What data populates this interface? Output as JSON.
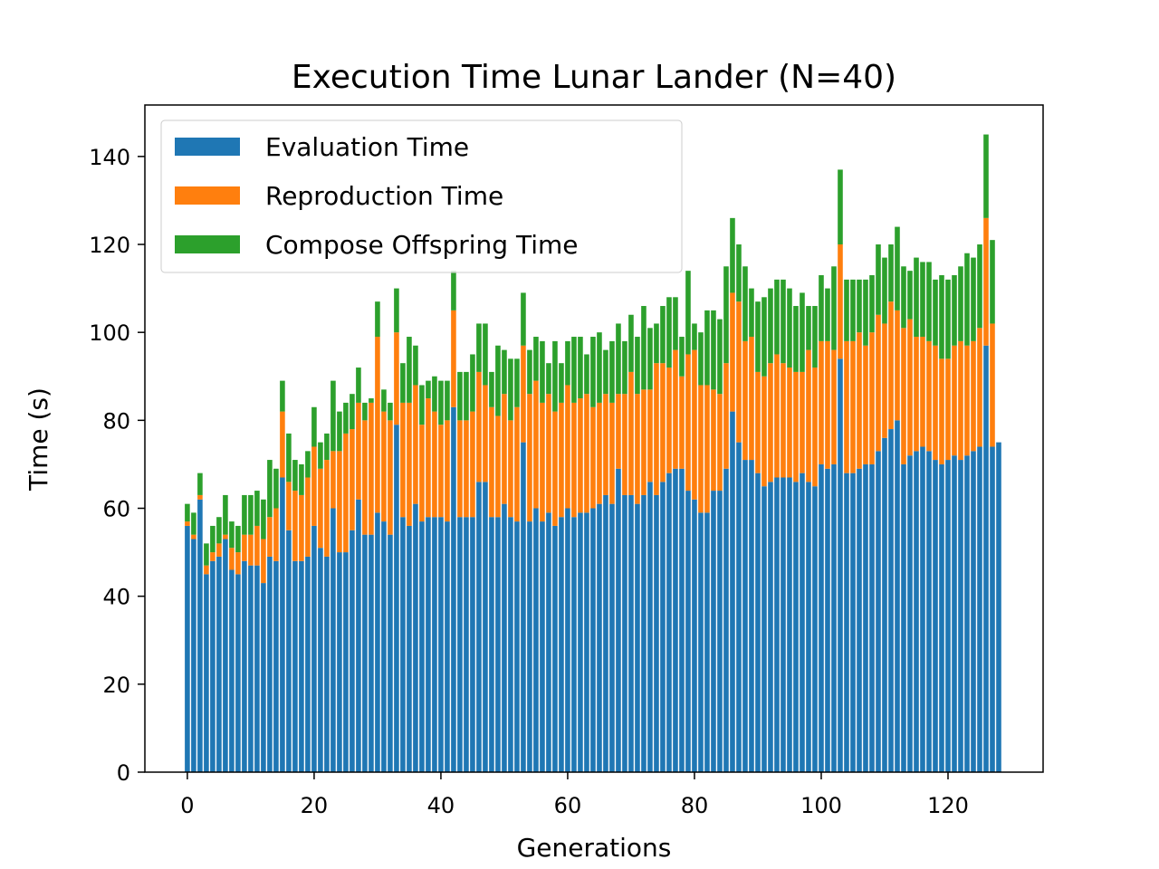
{
  "chart_data": {
    "type": "stacked_bar",
    "title": "Execution Time Lunar Lander (N=40)",
    "x_label": "Generations",
    "y_label": "Time (s)",
    "x": [
      0,
      1,
      2,
      3,
      4,
      5,
      6,
      7,
      8,
      9,
      10,
      11,
      12,
      13,
      14,
      15,
      16,
      17,
      18,
      19,
      20,
      21,
      22,
      23,
      24,
      25,
      26,
      27,
      28,
      29,
      30,
      31,
      32,
      33,
      34,
      35,
      36,
      37,
      38,
      39,
      40,
      41,
      42,
      43,
      44,
      45,
      46,
      47,
      48,
      49,
      50,
      51,
      52,
      53,
      54,
      55,
      56,
      57,
      58,
      59,
      60,
      61,
      62,
      63,
      64,
      65,
      66,
      67,
      68,
      69,
      70,
      71,
      72,
      73,
      74,
      75,
      76,
      77,
      78,
      79,
      80,
      81,
      82,
      83,
      84,
      85,
      86,
      87,
      88,
      89,
      90,
      91,
      92,
      93,
      94,
      95,
      96,
      97,
      98,
      99,
      100,
      101,
      102,
      103,
      104,
      105,
      106,
      107,
      108,
      109,
      110,
      111,
      112,
      113,
      114,
      115,
      116,
      117,
      118,
      119,
      120,
      121,
      122,
      123,
      124,
      125,
      126,
      127,
      128
    ],
    "series": [
      {
        "name": "Evaluation Time",
        "color": "#1f77b4",
        "values": [
          56,
          53,
          62,
          45,
          48,
          49,
          53,
          46,
          45,
          48,
          47,
          47,
          43,
          49,
          48,
          67,
          55,
          48,
          48,
          49,
          56,
          51,
          49,
          60,
          50,
          50,
          55,
          62,
          54,
          54,
          59,
          57,
          54,
          79,
          58,
          56,
          61,
          57,
          58,
          58,
          58,
          57,
          83,
          58,
          58,
          58,
          66,
          66,
          58,
          58,
          61,
          58,
          57,
          75,
          57,
          60,
          57,
          59,
          56,
          58,
          60,
          58,
          59,
          59,
          60,
          61,
          63,
          61,
          69,
          63,
          63,
          61,
          63,
          66,
          63,
          66,
          68,
          69,
          69,
          64,
          62,
          59,
          59,
          64,
          64,
          69,
          82,
          75,
          71,
          71,
          68,
          65,
          66,
          67,
          67,
          67,
          66,
          68,
          66,
          65,
          70,
          69,
          70,
          94,
          68,
          68,
          69,
          70,
          70,
          73,
          76,
          78,
          80,
          70,
          72,
          73,
          74,
          73,
          71,
          70,
          71,
          72,
          71,
          72,
          73,
          74,
          97,
          74,
          75
        ]
      },
      {
        "name": "Reproduction Time",
        "color": "#ff7f0e",
        "values": [
          1,
          1,
          1,
          2,
          2,
          3,
          1,
          5,
          5,
          6,
          7,
          9,
          10,
          9,
          12,
          15,
          11,
          16,
          15,
          18,
          18,
          18,
          22,
          13,
          23,
          27,
          23,
          22,
          26,
          30,
          40,
          25,
          26,
          21,
          26,
          28,
          27,
          22,
          27,
          24,
          21,
          23,
          22,
          22,
          22,
          24,
          25,
          22,
          25,
          23,
          25,
          22,
          26,
          22,
          29,
          29,
          27,
          27,
          26,
          26,
          28,
          26,
          26,
          27,
          23,
          23,
          23,
          23,
          17,
          23,
          28,
          25,
          24,
          21,
          30,
          27,
          24,
          27,
          21,
          31,
          34,
          29,
          29,
          23,
          22,
          24,
          27,
          32,
          27,
          28,
          23,
          25,
          27,
          28,
          26,
          25,
          25,
          23,
          30,
          27,
          28,
          29,
          26,
          26,
          30,
          30,
          31,
          27,
          30,
          31,
          26,
          29,
          25,
          31,
          31,
          26,
          25,
          25,
          26,
          24,
          23,
          25,
          27,
          25,
          25,
          27,
          29,
          28,
          0
        ]
      },
      {
        "name": "Compose Offspring Time",
        "color": "#2ca02c",
        "values": [
          4,
          5,
          5,
          5,
          6,
          6,
          9,
          6,
          6,
          9,
          9,
          8,
          9,
          13,
          9,
          7,
          11,
          7,
          7,
          6,
          9,
          6,
          6,
          16,
          9,
          7,
          8,
          8,
          4,
          1,
          8,
          5,
          4,
          10,
          9,
          15,
          9,
          9,
          4,
          8,
          10,
          9,
          9,
          11,
          11,
          13,
          11,
          14,
          8,
          16,
          10,
          14,
          11,
          12,
          10,
          10,
          14,
          7,
          16,
          9,
          10,
          15,
          14,
          9,
          16,
          16,
          10,
          14,
          16,
          12,
          13,
          13,
          19,
          14,
          9,
          13,
          16,
          12,
          9,
          19,
          6,
          12,
          17,
          18,
          17,
          22,
          17,
          13,
          17,
          11,
          16,
          18,
          17,
          17,
          19,
          18,
          15,
          18,
          10,
          14,
          15,
          12,
          19,
          17,
          14,
          14,
          12,
          15,
          13,
          16,
          15,
          13,
          19,
          14,
          11,
          18,
          17,
          18,
          15,
          19,
          18,
          16,
          17,
          21,
          19,
          19,
          19,
          19,
          0
        ]
      }
    ],
    "xlim": [
      -6.7,
      135
    ],
    "ylim": [
      0,
      151.7
    ],
    "xticks": [
      0,
      20,
      40,
      60,
      80,
      100,
      120
    ],
    "yticks": [
      0,
      20,
      40,
      60,
      80,
      100,
      120,
      140
    ],
    "bar_width": 0.8,
    "legend": "upper-left"
  }
}
